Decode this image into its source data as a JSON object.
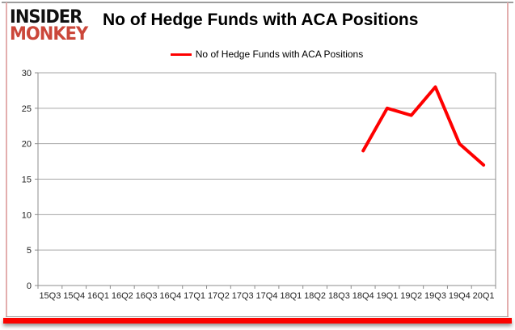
{
  "header": {
    "logo_line1": "INSIDER",
    "logo_line2": "MONKEY",
    "title": "No of Hedge Funds with ACA Positions"
  },
  "legend": {
    "label": "No of Hedge Funds with ACA Positions"
  },
  "colors": {
    "series_line": "#fe0000",
    "logo_red": "#cb473a",
    "gridline": "#a6a6a6",
    "axis": "#8c8c8c",
    "tick_text": "#1f1f1f",
    "bottom_bar": "#fb0300",
    "side_border": "#e3aeae",
    "top_border": "#9d9d9d"
  },
  "chart_data": {
    "type": "line",
    "title": "No of Hedge Funds with ACA Positions",
    "xlabel": "",
    "ylabel": "",
    "categories": [
      "15Q3",
      "15Q4",
      "16Q1",
      "16Q2",
      "16Q3",
      "16Q4",
      "17Q1",
      "17Q2",
      "17Q3",
      "17Q4",
      "18Q1",
      "18Q2",
      "18Q3",
      "18Q4",
      "19Q1",
      "19Q2",
      "19Q3",
      "19Q4",
      "20Q1"
    ],
    "series": [
      {
        "name": "No of Hedge Funds with ACA Positions",
        "values": [
          null,
          null,
          null,
          null,
          null,
          null,
          null,
          null,
          null,
          null,
          null,
          null,
          null,
          19,
          25,
          24,
          28,
          20,
          17
        ]
      }
    ],
    "ylim": [
      0,
      30
    ],
    "ytick_step": 5,
    "grid": true,
    "legend_position": "top-center"
  }
}
